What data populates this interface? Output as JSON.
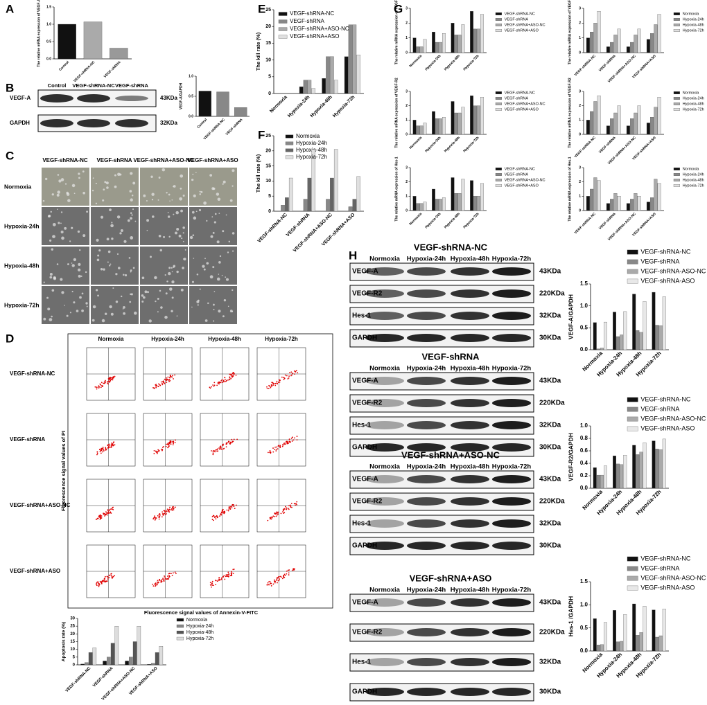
{
  "panel_labels": [
    "A",
    "B",
    "C",
    "D",
    "E",
    "F",
    "G",
    "H"
  ],
  "panel_B_blot": {
    "columns": [
      "Control",
      "VEGF-shRNA-NC",
      "VEGF-shRNA"
    ],
    "rows": [
      "VEGF-A",
      "GAPDH"
    ],
    "sizes": [
      "43KDa",
      "32KDa"
    ]
  },
  "panel_C_images": {
    "columns": [
      "VEGF-shRNA-NC",
      "VEGF-shRNA",
      "VEGF-shRNA+ASO-NC",
      "VEGF-shRNA+ASO"
    ],
    "rows": [
      "Normoxia",
      "Hypoxia-24h",
      "Hypoxia-48h",
      "Hypoxia-72h"
    ]
  },
  "panel_D_flow": {
    "columns": [
      "Normoxia",
      "Hypoxia-24h",
      "Hypoxia-48h",
      "Hypoxia-72h"
    ],
    "rows": [
      "VEGF-shRNA-NC",
      "VEGF-shRNA",
      "VEGF-shRNA+ASO-NC",
      "VEGF-shRNA+ASO"
    ],
    "y_axis": "Fluorescence signal values of PI",
    "x_axis": "Fluorescence signal values of Annexin-V-FITC"
  },
  "panel_H_blots": [
    {
      "title": "VEGF-shRNA-NC",
      "columns": [
        "Normoxia",
        "Hypoxia-24h",
        "Hypoxia-48h",
        "Hypoxia-72h"
      ],
      "rows": [
        "VEGF-A",
        "VEGF-R2",
        "Hes-1",
        "GAPDH"
      ],
      "sizes": [
        "43KDa",
        "220KDa",
        "32KDa",
        "30KDa"
      ]
    },
    {
      "title": "VEGF-shRNA",
      "columns": [
        "Normoxia",
        "Hypoxia-24h",
        "Hypoxia-48h",
        "Hypoxia-72h"
      ],
      "rows": [
        "VEGF-A",
        "VEGF-R2",
        "Hes-1",
        "GAPDH"
      ],
      "sizes": [
        "43KDa",
        "220KDa",
        "32KDa",
        "30KDa"
      ]
    },
    {
      "title": "VEGF-shRNA+ASO-NC",
      "columns": [
        "Normoxia",
        "Hypoxia-24h",
        "Hypoxia-48h",
        "Hypoxia-72h"
      ],
      "rows": [
        "VEGF-A",
        "VEGF-R2",
        "Hes-1",
        "GAPDH"
      ],
      "sizes": [
        "43KDa",
        "220KDa",
        "32KDa",
        "30KDa"
      ]
    },
    {
      "title": "VEGF-shRNA+ASO",
      "columns": [
        "Normoxia",
        "Hypoxia-24h",
        "Hypoxia-48h",
        "Hypoxia-72h"
      ],
      "rows": [
        "VEGF-A",
        "VEGF-R2",
        "Hes-1",
        "GAPDH"
      ],
      "sizes": [
        "43KDa",
        "220KDa",
        "32KDa",
        "30KDa"
      ]
    }
  ],
  "chart_data": [
    {
      "type": "bar",
      "ylabel": "The relative mRNA expression of VEGF-A",
      "categories": [
        "Control",
        "VEGF-shRNA-NC",
        "VEGF-shRNA"
      ],
      "values": [
        1.0,
        1.07,
        0.31
      ],
      "colors": [
        "#111111",
        "#aaaaaa",
        "#999999"
      ],
      "ylim": [
        0,
        1.5
      ],
      "yticks": [
        {
          "value": 0,
          "label": "0.0"
        },
        0.5,
        {
          "value": 1,
          "label": "1.0"
        },
        1.5
      ]
    },
    {
      "type": "bar",
      "ylabel": "VEGF-A/GAPDH",
      "categories": [
        "Control",
        "VEGF-shRNA-NC",
        "VEGF-shRNA"
      ],
      "values": [
        0.63,
        0.61,
        0.22
      ],
      "colors": [
        "#111111",
        "#888888",
        "#888888"
      ],
      "ylim": [
        0,
        1
      ],
      "yticks": [
        {
          "value": 0,
          "label": "0.0"
        },
        0.5,
        {
          "value": 1,
          "label": "1.0"
        }
      ]
    },
    {
      "type": "bar",
      "ylabel": "Apoptosis rate (%)",
      "categories": [
        "VEGF-shRNA-NC",
        "VEGF-shRNA",
        "VEGF-shRNA+ASO-NC",
        "VEGF-shRNA+ASO"
      ],
      "series": [
        {
          "name": "Normoxia",
          "color": "#111111",
          "values": [
            0.5,
            2.5,
            2.5,
            0.3
          ]
        },
        {
          "name": "Hypoxia-24h",
          "color": "#888888",
          "values": [
            1.5,
            5,
            5,
            1
          ]
        },
        {
          "name": "Hypoxia-48h",
          "color": "#555555",
          "values": [
            8,
            14,
            15,
            8
          ]
        },
        {
          "name": "Hypoxia-72h",
          "color": "#dddddd",
          "values": [
            11,
            25,
            25,
            12
          ]
        }
      ],
      "ylim": [
        0,
        30
      ],
      "yticks": [
        0,
        5,
        10,
        15,
        20,
        25,
        30
      ]
    },
    {
      "type": "bar",
      "ylabel": "The kill rate (%)",
      "categories": [
        "Normoxia",
        "Hypoxia-24h",
        "Hypoxia-48h",
        "Hypoxia-72h"
      ],
      "series": [
        {
          "name": "VEGF-shRNA-NC",
          "color": "#111111",
          "values": [
            0,
            2,
            4.5,
            11
          ]
        },
        {
          "name": "VEGF-shRNA",
          "color": "#888888",
          "values": [
            0,
            4,
            11,
            20.5
          ]
        },
        {
          "name": "VEGF-shRNA+ASO-NC",
          "color": "#aaaaaa",
          "values": [
            0,
            4,
            11,
            20.5
          ]
        },
        {
          "name": "VEGF-shRNA+ASO",
          "color": "#e0e0e0",
          "values": [
            0,
            1.5,
            4,
            11.5
          ]
        }
      ],
      "ylim": [
        0,
        25
      ],
      "yticks": [
        0,
        5,
        10,
        15,
        20,
        25
      ]
    },
    {
      "type": "bar",
      "ylabel": "The kill rate (%)",
      "categories": [
        "VEGF-shRNA-NC",
        "VEGF-shRNA",
        "VEGF-shRNA+ASO-NC",
        "VEGF-shRNA+ASO"
      ],
      "series": [
        {
          "name": "Normoxia",
          "color": "#111111",
          "values": [
            0,
            0,
            0,
            0
          ]
        },
        {
          "name": "Hypoxia-24h",
          "color": "#888888",
          "values": [
            2,
            4,
            4,
            1.5
          ]
        },
        {
          "name": "Hypoxia-48h",
          "color": "#666666",
          "values": [
            4.5,
            11,
            11,
            4
          ]
        },
        {
          "name": "Hypoxia-72h",
          "color": "#e0e0e0",
          "values": [
            11,
            20.5,
            20.5,
            11.5
          ]
        }
      ],
      "ylim": [
        0,
        25
      ],
      "yticks": [
        0,
        5,
        10,
        15,
        20,
        25
      ]
    },
    {
      "type": "bar",
      "ylabel": "The relative mRNA expression of VEGF-A",
      "categories": [
        "Normoxia",
        "Hypoxia-24h",
        "Hypoxia-48h",
        "Hypoxia-72h"
      ],
      "series": [
        {
          "name": "VEGF-shRNA-NC",
          "color": "#111111",
          "values": [
            1,
            1.4,
            2,
            2.8
          ]
        },
        {
          "name": "VEGF-shRNA",
          "color": "#888888",
          "values": [
            0.4,
            0.7,
            1.2,
            1.6
          ]
        },
        {
          "name": "VEGF-shRNA+ASO-NC",
          "color": "#aaaaaa",
          "values": [
            0.4,
            0.7,
            1.2,
            1.6
          ]
        },
        {
          "name": "VEGF-shRNA+ASO",
          "color": "#e0e0e0",
          "values": [
            0.9,
            1.3,
            1.9,
            2.6
          ]
        }
      ],
      "ylim": [
        0,
        3
      ],
      "yticks": [
        0,
        1,
        2,
        3
      ]
    },
    {
      "type": "bar",
      "ylabel": "The relative mRNA expression of VEGF-R2",
      "categories": [
        "Normoxia",
        "Hypoxia-24h",
        "Hypoxia-48h",
        "Hypoxia-72h"
      ],
      "series": [
        {
          "name": "VEGF-shRNA-NC",
          "color": "#111111",
          "values": [
            1,
            1.6,
            2.3,
            2.7
          ]
        },
        {
          "name": "VEGF-shRNA",
          "color": "#888888",
          "values": [
            0.6,
            1.1,
            1.5,
            2.0
          ]
        },
        {
          "name": "VEGF-shRNA+ASO-NC",
          "color": "#aaaaaa",
          "values": [
            0.6,
            1.1,
            1.5,
            2.0
          ]
        },
        {
          "name": "VEGF-shRNA+ASO",
          "color": "#e0e0e0",
          "values": [
            0.8,
            1.2,
            1.9,
            2.6
          ]
        }
      ],
      "ylim": [
        0,
        3
      ],
      "yticks": [
        0,
        1,
        2,
        3
      ]
    },
    {
      "type": "bar",
      "ylabel": "The relative mRNA expression of Hes-1",
      "categories": [
        "Normoxia",
        "Hypoxia-24h",
        "Hypoxia-48h",
        "Hypoxia-72h"
      ],
      "series": [
        {
          "name": "VEGF-shRNA-NC",
          "color": "#111111",
          "values": [
            1,
            1.5,
            2.3,
            2.1
          ]
        },
        {
          "name": "VEGF-shRNA",
          "color": "#888888",
          "values": [
            0.5,
            0.8,
            1.2,
            1.0
          ]
        },
        {
          "name": "VEGF-shRNA+ASO-NC",
          "color": "#aaaaaa",
          "values": [
            0.5,
            0.8,
            1.2,
            1.0
          ]
        },
        {
          "name": "VEGF-shRNA+ASO",
          "color": "#e0e0e0",
          "values": [
            0.6,
            0.9,
            2.2,
            1.9
          ]
        }
      ],
      "ylim": [
        0,
        3
      ],
      "yticks": [
        0,
        1,
        2,
        3
      ]
    },
    {
      "type": "bar",
      "ylabel": "The relative mRNA expression of VEGF-A",
      "categories": [
        "VEGF-shRNA-NC",
        "VEGF-shRNA",
        "VEGF-shRNA+ASO-NC",
        "VEGF-shRNA+ASO"
      ],
      "series": [
        {
          "name": "Normoxia",
          "color": "#111111",
          "values": [
            1,
            0.4,
            0.4,
            0.9
          ]
        },
        {
          "name": "Hypoxia-24h",
          "color": "#888888",
          "values": [
            1.4,
            0.7,
            0.7,
            1.3
          ]
        },
        {
          "name": "Hypoxia-48h",
          "color": "#aaaaaa",
          "values": [
            2,
            1.2,
            1.2,
            1.9
          ]
        },
        {
          "name": "Hypoxia-72h",
          "color": "#e0e0e0",
          "values": [
            2.8,
            1.6,
            1.6,
            2.6
          ]
        }
      ],
      "ylim": [
        0,
        3
      ],
      "yticks": [
        0,
        1,
        2,
        3
      ]
    },
    {
      "type": "bar",
      "ylabel": "The relative mRNA expression of VEGF-R2",
      "categories": [
        "VEGF-shRNA-NC",
        "VEGF-shRNA",
        "VEGF-shRNA+ASO-NC",
        "VEGF-shRNA+ASO"
      ],
      "series": [
        {
          "name": "Normoxia",
          "color": "#111111",
          "values": [
            1,
            0.6,
            0.6,
            0.8
          ]
        },
        {
          "name": "Hypoxia-24h",
          "color": "#888888",
          "values": [
            1.6,
            1.1,
            1.1,
            1.2
          ]
        },
        {
          "name": "Hypoxia-48h",
          "color": "#aaaaaa",
          "values": [
            2.3,
            1.5,
            1.5,
            1.9
          ]
        },
        {
          "name": "Hypoxia-72h",
          "color": "#e0e0e0",
          "values": [
            2.7,
            2.0,
            2.0,
            2.6
          ]
        }
      ],
      "ylim": [
        0,
        3
      ],
      "yticks": [
        0,
        1,
        2,
        3
      ]
    },
    {
      "type": "bar",
      "ylabel": "The relative mRNA expression of Hes-1",
      "categories": [
        "VEGF-shRNA-NC",
        "VEGF-shRNA",
        "VEGF-shRNA+ASO-NC",
        "VEGF-shRNA+ASO"
      ],
      "series": [
        {
          "name": "Normoxia",
          "color": "#111111",
          "values": [
            1,
            0.5,
            0.5,
            0.6
          ]
        },
        {
          "name": "Hypoxia-24h",
          "color": "#888888",
          "values": [
            1.5,
            0.8,
            0.8,
            0.9
          ]
        },
        {
          "name": "Hypoxia-48h",
          "color": "#aaaaaa",
          "values": [
            2.3,
            1.2,
            1.2,
            2.2
          ]
        },
        {
          "name": "Hypoxia-72h",
          "color": "#e0e0e0",
          "values": [
            2.1,
            1.0,
            1.0,
            1.9
          ]
        }
      ],
      "ylim": [
        0,
        3
      ],
      "yticks": [
        0,
        1,
        2,
        3
      ]
    },
    {
      "type": "bar",
      "ylabel": "VEGF-A/GAPDH",
      "categories": [
        "Normoxia",
        "Hypoxia-24h",
        "Hypoxia-48h",
        "Hypoxia-72h"
      ],
      "series": [
        {
          "name": "VEGF-shRNA-NC",
          "color": "#111111",
          "values": [
            0.62,
            0.86,
            1.27,
            1.31
          ]
        },
        {
          "name": "VEGF-shRNA",
          "color": "#888888",
          "values": [
            0.02,
            0.3,
            0.44,
            0.56
          ]
        },
        {
          "name": "VEGF-shRNA-ASO-NC",
          "color": "#aaaaaa",
          "values": [
            0.04,
            0.34,
            0.4,
            0.55
          ]
        },
        {
          "name": "VEGF-shRNA-ASO",
          "color": "#e8e8e8",
          "values": [
            0.63,
            0.87,
            1.1,
            1.21
          ]
        }
      ],
      "ylim": [
        0,
        1.5
      ],
      "yticks": [
        {
          "value": 0,
          "label": "0.0"
        },
        0.5,
        {
          "value": 1,
          "label": "1.0"
        },
        1.5
      ]
    },
    {
      "type": "bar",
      "ylabel": "VEGF-R2/GAPDH",
      "categories": [
        "Normoxia",
        "Hypoxia-24h",
        "Hypoxia-48h",
        "Hypoxia-72h"
      ],
      "series": [
        {
          "name": "VEGF-shRNA-NC",
          "color": "#111111",
          "values": [
            0.33,
            0.52,
            0.69,
            0.76
          ]
        },
        {
          "name": "VEGF-shRNA",
          "color": "#888888",
          "values": [
            0.21,
            0.39,
            0.54,
            0.63
          ]
        },
        {
          "name": "VEGF-shRNA-ASO-NC",
          "color": "#aaaaaa",
          "values": [
            0.21,
            0.38,
            0.58,
            0.62
          ]
        },
        {
          "name": "VEGF-shRNA-ASO",
          "color": "#e8e8e8",
          "values": [
            0.36,
            0.53,
            0.73,
            0.79
          ]
        }
      ],
      "ylim": [
        0,
        1
      ],
      "yticks": [
        {
          "value": 0,
          "label": "0.0"
        },
        0.2,
        0.4,
        0.6,
        0.8,
        {
          "value": 1,
          "label": "1.0"
        }
      ]
    },
    {
      "type": "bar",
      "ylabel": "Hes-1 /GAPDH",
      "categories": [
        "Normoxia",
        "Hypoxia-24h",
        "Hypoxia-48h",
        "Hypoxia-72h"
      ],
      "series": [
        {
          "name": "VEGF-shRNA-NC",
          "color": "#111111",
          "values": [
            0.7,
            0.88,
            1.02,
            0.89
          ]
        },
        {
          "name": "VEGF-shRNA",
          "color": "#888888",
          "values": [
            0.13,
            0.2,
            0.34,
            0.3
          ]
        },
        {
          "name": "VEGF-shRNA-ASO-NC",
          "color": "#aaaaaa",
          "values": [
            0.14,
            0.21,
            0.4,
            0.33
          ]
        },
        {
          "name": "VEGF-shRNA-ASO",
          "color": "#e8e8e8",
          "values": [
            0.62,
            0.79,
            0.97,
            0.91
          ]
        }
      ],
      "ylim": [
        0,
        1.5
      ],
      "yticks": [
        {
          "value": 0,
          "label": "0.0"
        },
        0.5,
        {
          "value": 1,
          "label": "1.0"
        },
        1.5
      ]
    }
  ]
}
